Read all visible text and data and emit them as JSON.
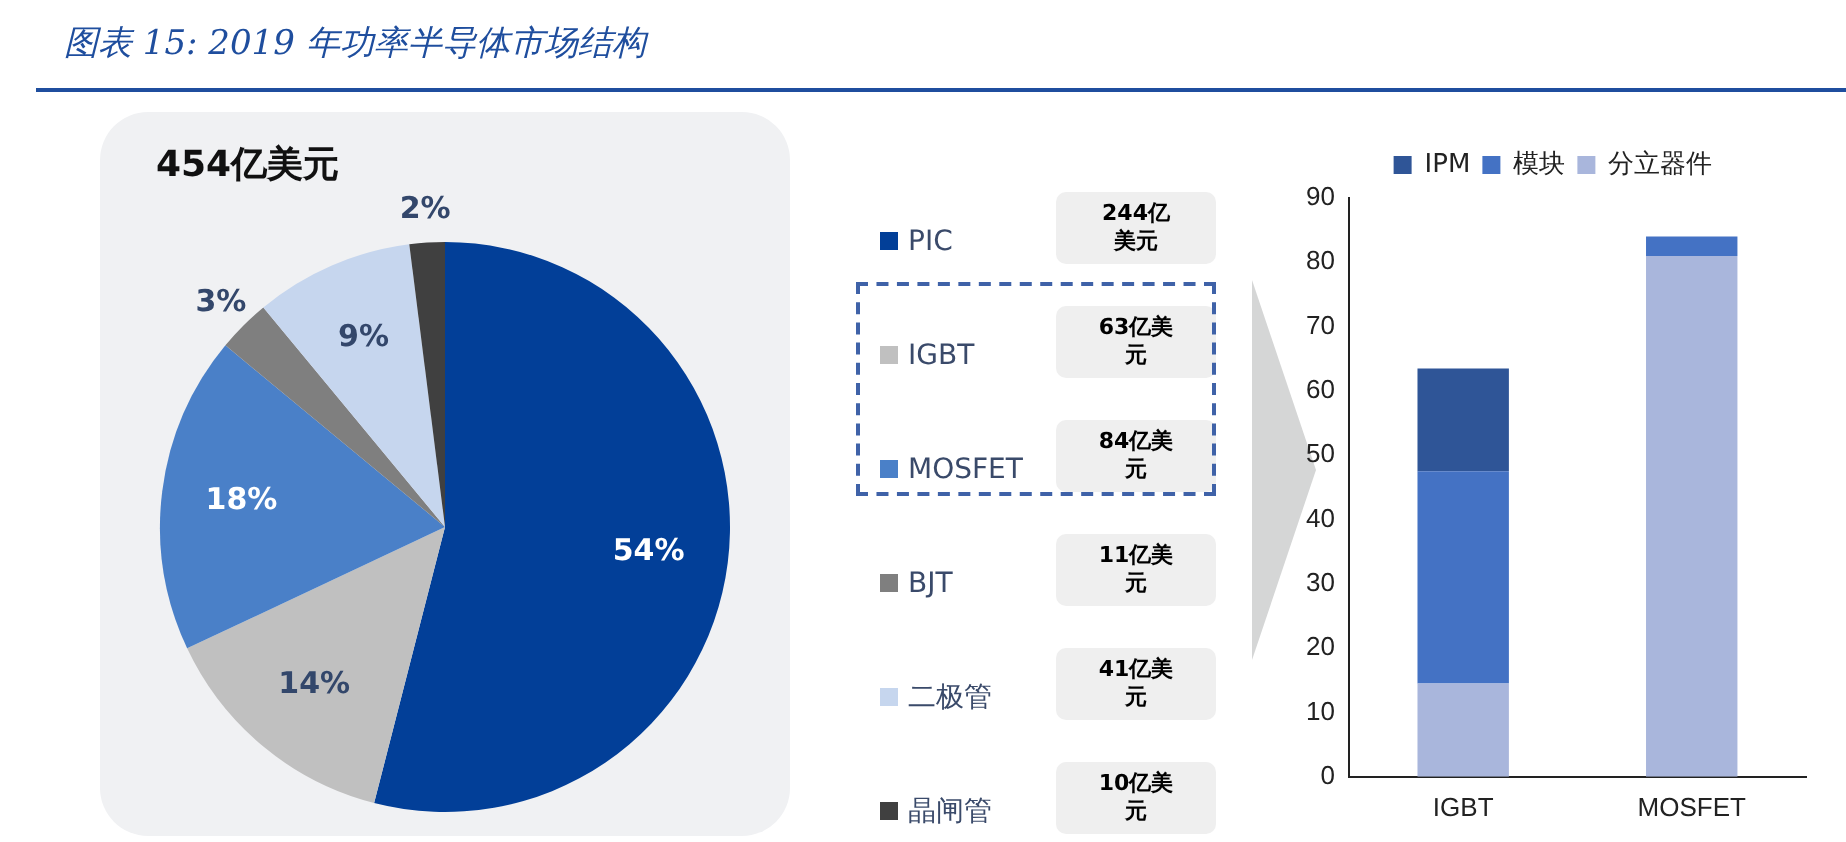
{
  "chart_data": [
    {
      "type": "pie",
      "title": "图表 15: 2019 年功率半导体市场结构",
      "subtitle": "454亿美元",
      "categories": [
        "PIC",
        "IGBT",
        "MOSFET",
        "BJT",
        "二极管",
        "晶闸管"
      ],
      "values": [
        54,
        14,
        18,
        3,
        9,
        2
      ],
      "colors": [
        "#023f98",
        "#c0c0c0",
        "#4a80c8",
        "#7f7f7f",
        "#c6d6ee",
        "#404040"
      ],
      "value_labels": [
        "54%",
        "14%",
        "18%",
        "3%",
        "9%",
        "2%"
      ],
      "legend": "right",
      "annotations": [
        "244亿美元",
        "63亿美元",
        "84亿美元",
        "11亿美元",
        "41亿美元",
        "10亿美元"
      ]
    },
    {
      "type": "bar",
      "stacked": true,
      "categories": [
        "IGBT",
        "MOSFET"
      ],
      "legend": "top",
      "grid": false,
      "ylim": [
        0,
        90
      ],
      "yticks": [
        0,
        10,
        20,
        30,
        40,
        50,
        60,
        70,
        80,
        90
      ],
      "series": [
        {
          "name": "分立器件",
          "color": "#a9b6dc",
          "values": [
            14.5,
            81
          ]
        },
        {
          "name": "模块",
          "color": "#4472c4",
          "values": [
            33,
            3
          ]
        },
        {
          "name": "IPM",
          "color": "#2f5597",
          "values": [
            16,
            null
          ]
        }
      ]
    }
  ]
}
